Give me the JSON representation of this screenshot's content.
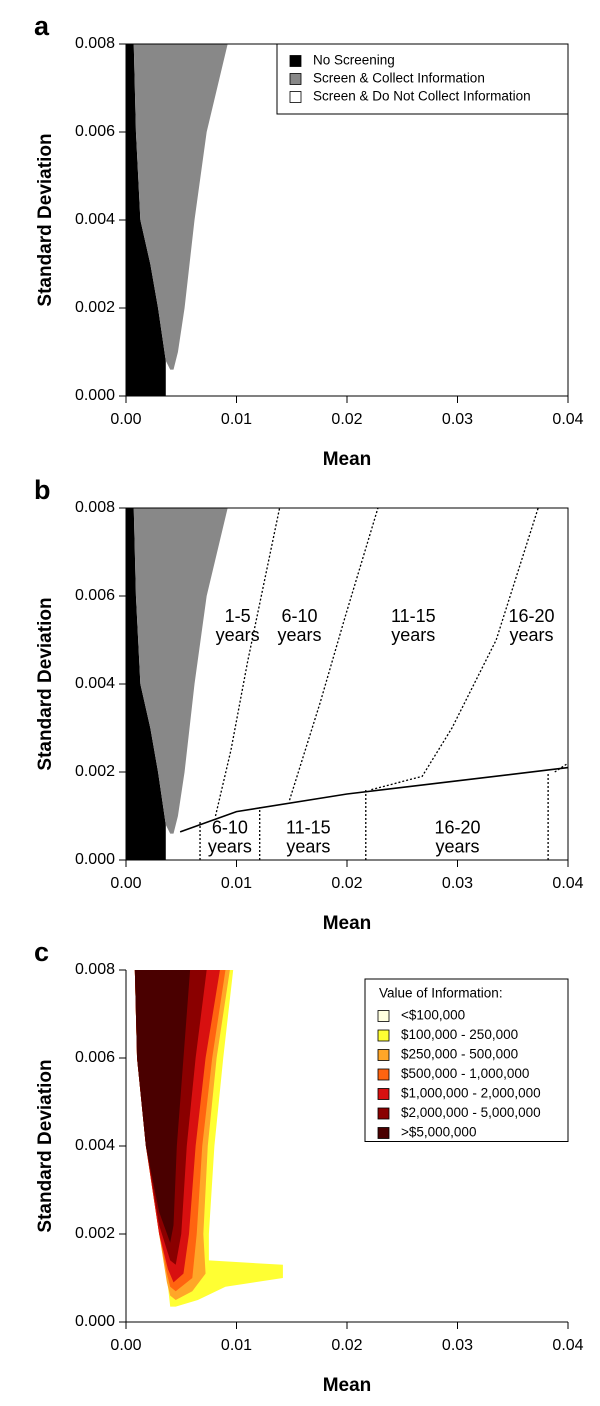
{
  "chart_data": [
    {
      "type": "region",
      "panel_label": "a",
      "xlabel": "Mean",
      "ylabel": "Standard Deviation",
      "xlim": [
        0,
        0.04
      ],
      "ylim": [
        0,
        0.008
      ],
      "xticks": [
        {
          "value": 0,
          "label": "0.00"
        },
        0.01,
        0.02,
        0.03,
        0.04
      ],
      "yticks": [
        {
          "value": 0,
          "label": "0.000"
        },
        0.002,
        0.004,
        0.006,
        0.008
      ],
      "box": true,
      "legend": "top-right",
      "series": [
        {
          "name": "No Screening",
          "color": "#000000",
          "x": [
            0,
            0,
            0.0007,
            0.0009,
            0.0013,
            0.0022,
            0.0029,
            0.0036,
            0.0036
          ],
          "y": [
            0,
            0.008,
            0.008,
            0.006,
            0.004,
            0.003,
            0.002,
            0.0008,
            0
          ]
        },
        {
          "name": "Screen & Collect Information",
          "color": "#888888",
          "x": [
            0.0007,
            0.0092,
            0.0073,
            0.0062,
            0.0053,
            0.0047,
            0.0043,
            0.004,
            0.0036,
            0.0029,
            0.0022,
            0.0013,
            0.0009
          ],
          "y": [
            0.008,
            0.008,
            0.006,
            0.004,
            0.002,
            0.001,
            0.0006,
            0.0006,
            0.0008,
            0.002,
            0.003,
            0.004,
            0.006
          ]
        },
        {
          "name": "Screen & Do Not Collect Information",
          "color": "#ffffff"
        }
      ]
    },
    {
      "type": "region",
      "panel_label": "b",
      "xlabel": "Mean",
      "ylabel": "Standard Deviation",
      "xlim": [
        0,
        0.04
      ],
      "ylim": [
        0,
        0.008
      ],
      "xticks": [
        {
          "value": 0,
          "label": "0.00"
        },
        0.01,
        0.02,
        0.03,
        0.04
      ],
      "yticks": [
        {
          "value": 0,
          "label": "0.000"
        },
        0.002,
        0.004,
        0.006,
        0.008
      ],
      "box": true,
      "series": [
        {
          "color": "#000000",
          "x": [
            0,
            0,
            0.0007,
            0.0009,
            0.0013,
            0.0022,
            0.0029,
            0.0036,
            0.0036
          ],
          "y": [
            0,
            0.008,
            0.008,
            0.006,
            0.004,
            0.003,
            0.002,
            0.0008,
            0
          ]
        },
        {
          "color": "#888888",
          "x": [
            0.0007,
            0.0092,
            0.0073,
            0.0062,
            0.0053,
            0.0047,
            0.0043,
            0.004,
            0.0036,
            0.0029,
            0.0022,
            0.0013,
            0.0009
          ],
          "y": [
            0.008,
            0.008,
            0.006,
            0.004,
            0.002,
            0.001,
            0.0006,
            0.0006,
            0.0008,
            0.002,
            0.003,
            0.004,
            0.006
          ]
        }
      ],
      "lines": [
        {
          "style": "solid",
          "x": [
            0.0049,
            0.01,
            0.02,
            0.03,
            0.04
          ],
          "y": [
            0.00064,
            0.0011,
            0.0015,
            0.0018,
            0.0021
          ]
        },
        {
          "style": "dotted",
          "x": [
            0.0081,
            0.0095,
            0.011,
            0.0139
          ],
          "y": [
            0.001,
            0.0025,
            0.0045,
            0.008
          ]
        },
        {
          "style": "dotted",
          "x": [
            0.0148,
            0.0176,
            0.0198,
            0.0228
          ],
          "y": [
            0.00136,
            0.0036,
            0.0055,
            0.008
          ]
        },
        {
          "style": "dotted",
          "x": [
            0.0222,
            0.0268,
            0.0295,
            0.0335,
            0.0373
          ],
          "y": [
            0.0016,
            0.0019,
            0.003,
            0.005,
            0.008
          ]
        },
        {
          "style": "dotted",
          "x": [
            0.0388,
            0.04
          ],
          "y": [
            0.002,
            0.0022
          ]
        },
        {
          "style": "dotted",
          "x": [
            0.0067,
            0.0067
          ],
          "y": [
            0,
            0.0009
          ]
        },
        {
          "style": "dotted",
          "x": [
            0.0121,
            0.0121
          ],
          "y": [
            0,
            0.0012
          ]
        },
        {
          "style": "dotted",
          "x": [
            0.0217,
            0.0217
          ],
          "y": [
            0,
            0.0016
          ]
        },
        {
          "style": "dotted",
          "x": [
            0.0382,
            0.0382
          ],
          "y": [
            0,
            0.002
          ]
        }
      ],
      "annotations": [
        {
          "lines": [
            "1-5",
            "years"
          ],
          "x": 0.0101,
          "y": 0.0053
        },
        {
          "lines": [
            "6-10",
            "years"
          ],
          "x": 0.0157,
          "y": 0.0053
        },
        {
          "lines": [
            "11-15",
            "years"
          ],
          "x": 0.026,
          "y": 0.0053
        },
        {
          "lines": [
            "16-20",
            "years"
          ],
          "x": 0.0367,
          "y": 0.0053
        },
        {
          "lines": [
            "6-10",
            "years"
          ],
          "x": 0.0094,
          "y": 0.0005
        },
        {
          "lines": [
            "11-15",
            "years"
          ],
          "x": 0.0165,
          "y": 0.0005
        },
        {
          "lines": [
            "16-20",
            "years"
          ],
          "x": 0.03,
          "y": 0.0005
        }
      ]
    },
    {
      "type": "region",
      "panel_label": "c",
      "xlabel": "Mean",
      "ylabel": "Standard Deviation",
      "xlim": [
        0,
        0.04
      ],
      "ylim": [
        0,
        0.008
      ],
      "xticks": [
        {
          "value": 0,
          "label": "0.00"
        },
        0.01,
        0.02,
        0.03,
        0.04
      ],
      "yticks": [
        {
          "value": 0,
          "label": "0.000"
        },
        0.002,
        0.004,
        0.006,
        0.008
      ],
      "box": false,
      "legend": "top-right",
      "legend_title": "Value of Information:",
      "series": [
        {
          "name": "<$100,000",
          "color": "#ffffe0"
        },
        {
          "name": "$100,000 - 250,000",
          "color": "#ffff33",
          "x": [
            0.0008,
            0.0097,
            0.0088,
            0.008,
            0.0075,
            0.0075,
            0.0142,
            0.0142,
            0.009,
            0.0065,
            0.0045,
            0.004,
            0.0038,
            0.003,
            0.0018,
            0.001
          ],
          "y": [
            0.008,
            0.008,
            0.006,
            0.004,
            0.002,
            0.0014,
            0.0013,
            0.001,
            0.0008,
            0.0005,
            0.00035,
            0.00035,
            0.0008,
            0.002,
            0.004,
            0.006
          ]
        },
        {
          "name": "$250,000 - 500,000",
          "color": "#ffa628",
          "x": [
            0.0008,
            0.0094,
            0.0082,
            0.0074,
            0.007,
            0.0072,
            0.006,
            0.0045,
            0.004,
            0.0037,
            0.003,
            0.0018,
            0.001
          ],
          "y": [
            0.008,
            0.008,
            0.006,
            0.004,
            0.002,
            0.0011,
            0.0007,
            0.0005,
            0.0006,
            0.0009,
            0.002,
            0.004,
            0.006
          ]
        },
        {
          "name": "$500,000 - 1,000,000",
          "color": "#ff6410",
          "x": [
            0.0008,
            0.009,
            0.0078,
            0.0069,
            0.0064,
            0.006,
            0.0045,
            0.004,
            0.0037,
            0.003,
            0.0018,
            0.001
          ],
          "y": [
            0.008,
            0.008,
            0.006,
            0.004,
            0.002,
            0.001,
            0.0007,
            0.0008,
            0.0011,
            0.002,
            0.004,
            0.006
          ]
        },
        {
          "name": "$1,000,000 - 2,000,000",
          "color": "#d81010",
          "x": [
            0.0008,
            0.0085,
            0.0072,
            0.0063,
            0.0057,
            0.0052,
            0.0043,
            0.0038,
            0.003,
            0.0018,
            0.001
          ],
          "y": [
            0.008,
            0.008,
            0.006,
            0.004,
            0.002,
            0.0011,
            0.0009,
            0.0012,
            0.002,
            0.004,
            0.006
          ]
        },
        {
          "name": "$2,000,000 - 5,000,000",
          "color": "#8a0000",
          "x": [
            0.0008,
            0.0073,
            0.0063,
            0.0055,
            0.005,
            0.0045,
            0.004,
            0.003,
            0.0018,
            0.001
          ],
          "y": [
            0.008,
            0.008,
            0.006,
            0.004,
            0.002,
            0.0013,
            0.0014,
            0.0022,
            0.004,
            0.006
          ]
        },
        {
          "name": ">$5,000,000",
          "color": "#4a0000",
          "x": [
            0.0008,
            0.0058,
            0.0052,
            0.0046,
            0.0043,
            0.004,
            0.003,
            0.0018,
            0.001
          ],
          "y": [
            0.008,
            0.008,
            0.006,
            0.004,
            0.0022,
            0.0018,
            0.0025,
            0.004,
            0.006
          ]
        }
      ]
    }
  ]
}
